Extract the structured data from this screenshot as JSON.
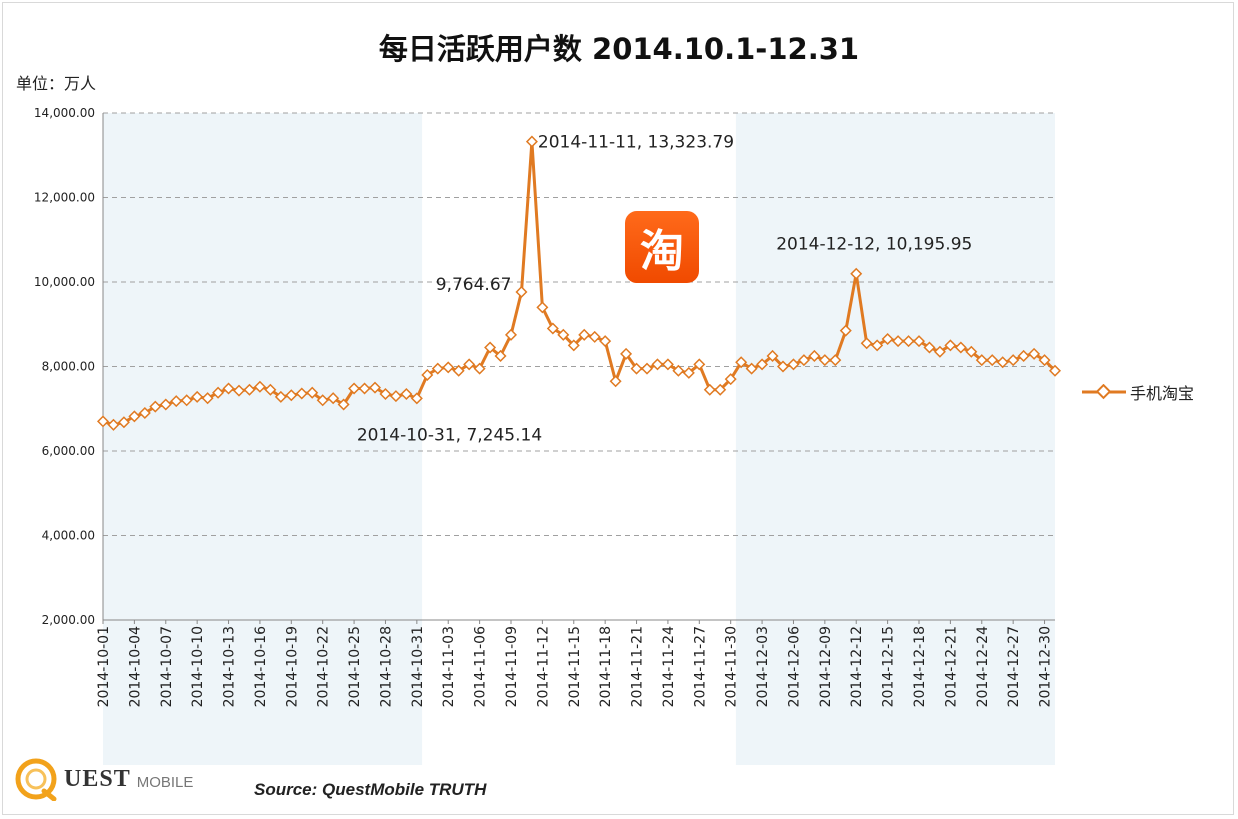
{
  "chart_data": {
    "type": "line",
    "title": "每日活跃用户数 2014.10.1-12.31",
    "unit_label": "单位：万人",
    "ylim": [
      2000,
      14000
    ],
    "yticks": [
      "2,000.00",
      "4,000.00",
      "6,000.00",
      "8,000.00",
      "10,000.00",
      "12,000.00",
      "14,000.00"
    ],
    "ytick_values": [
      2000,
      4000,
      6000,
      8000,
      10000,
      12000,
      14000
    ],
    "grid": "horizontal dashed",
    "legend_position": "right",
    "x": [
      "2014-10-01",
      "2014-10-02",
      "2014-10-03",
      "2014-10-04",
      "2014-10-05",
      "2014-10-06",
      "2014-10-07",
      "2014-10-08",
      "2014-10-09",
      "2014-10-10",
      "2014-10-11",
      "2014-10-12",
      "2014-10-13",
      "2014-10-14",
      "2014-10-15",
      "2014-10-16",
      "2014-10-17",
      "2014-10-18",
      "2014-10-19",
      "2014-10-20",
      "2014-10-21",
      "2014-10-22",
      "2014-10-23",
      "2014-10-24",
      "2014-10-25",
      "2014-10-26",
      "2014-10-27",
      "2014-10-28",
      "2014-10-29",
      "2014-10-30",
      "2014-10-31",
      "2014-11-01",
      "2014-11-02",
      "2014-11-03",
      "2014-11-04",
      "2014-11-05",
      "2014-11-06",
      "2014-11-07",
      "2014-11-08",
      "2014-11-09",
      "2014-11-10",
      "2014-11-11",
      "2014-11-12",
      "2014-11-13",
      "2014-11-14",
      "2014-11-15",
      "2014-11-16",
      "2014-11-17",
      "2014-11-18",
      "2014-11-19",
      "2014-11-20",
      "2014-11-21",
      "2014-11-22",
      "2014-11-23",
      "2014-11-24",
      "2014-11-25",
      "2014-11-26",
      "2014-11-27",
      "2014-11-28",
      "2014-11-29",
      "2014-11-30",
      "2014-12-01",
      "2014-12-02",
      "2014-12-03",
      "2014-12-04",
      "2014-12-05",
      "2014-12-06",
      "2014-12-07",
      "2014-12-08",
      "2014-12-09",
      "2014-12-10",
      "2014-12-11",
      "2014-12-12",
      "2014-12-13",
      "2014-12-14",
      "2014-12-15",
      "2014-12-16",
      "2014-12-17",
      "2014-12-18",
      "2014-12-19",
      "2014-12-20",
      "2014-12-21",
      "2014-12-22",
      "2014-12-23",
      "2014-12-24",
      "2014-12-25",
      "2014-12-26",
      "2014-12-27",
      "2014-12-28",
      "2014-12-29",
      "2014-12-30",
      "2014-12-31"
    ],
    "xtick_labels": [
      "2014-10-01",
      "2014-10-04",
      "2014-10-07",
      "2014-10-10",
      "2014-10-13",
      "2014-10-16",
      "2014-10-19",
      "2014-10-22",
      "2014-10-25",
      "2014-10-28",
      "2014-10-31",
      "2014-11-03",
      "2014-11-06",
      "2014-11-09",
      "2014-11-12",
      "2014-11-15",
      "2014-11-18",
      "2014-11-21",
      "2014-11-24",
      "2014-11-27",
      "2014-11-30",
      "2014-12-03",
      "2014-12-06",
      "2014-12-09",
      "2014-12-12",
      "2014-12-15",
      "2014-12-18",
      "2014-12-21",
      "2014-12-24",
      "2014-12-27",
      "2014-12-30"
    ],
    "series": [
      {
        "name": "手机淘宝",
        "color": "#e07a22",
        "values": [
          6700,
          6620,
          6680,
          6820,
          6900,
          7050,
          7100,
          7180,
          7200,
          7280,
          7250,
          7380,
          7480,
          7430,
          7450,
          7520,
          7450,
          7280,
          7320,
          7360,
          7380,
          7200,
          7250,
          7100,
          7480,
          7480,
          7500,
          7350,
          7300,
          7350,
          7245.14,
          7800,
          7950,
          7980,
          7900,
          8050,
          7950,
          8450,
          8250,
          8750,
          9764.67,
          13323.79,
          9400,
          8900,
          8750,
          8500,
          8750,
          8700,
          8600,
          7650,
          8300,
          7950,
          7950,
          8050,
          8050,
          7900,
          7850,
          8050,
          7450,
          7450,
          7700,
          8100,
          7950,
          8050,
          8250,
          8000,
          8050,
          8150,
          8250,
          8150,
          8150,
          8850,
          10195.95,
          8550,
          8500,
          8650,
          8600,
          8600,
          8600,
          8450,
          8350,
          8500,
          8450,
          8350,
          8150,
          8150,
          8100,
          8150,
          8250,
          8300,
          8150,
          7900
        ]
      }
    ],
    "annotations": [
      {
        "date": "2014-11-11",
        "text": "2014-11-11, 13,323.79"
      },
      {
        "date": "2014-12-12",
        "text": "2014-12-12, 10,195.95"
      },
      {
        "date": "2014-11-10",
        "text": "9,764.67"
      },
      {
        "date": "2014-10-31",
        "text": "2014-10-31, 7,245.14"
      }
    ],
    "colors": {
      "line": "#e07a22",
      "marker_fill": "#ffffff",
      "band": "#eef5f9",
      "grid": "#a0a0a0"
    }
  },
  "legend": {
    "label": "手机淘宝"
  },
  "logo": {
    "glyph": "淘",
    "color": "#f55a10"
  },
  "footer": {
    "source": "Source: QuestMobile TRUTH",
    "brand_main": "UEST",
    "brand_sub": "MOBILE"
  }
}
